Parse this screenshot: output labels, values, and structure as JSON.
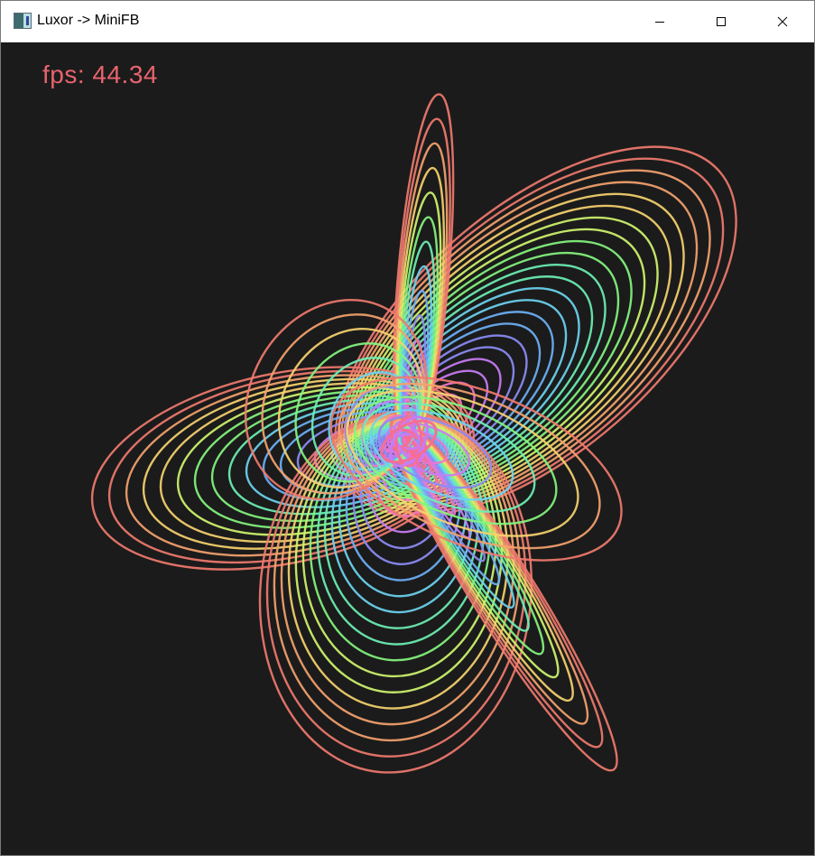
{
  "window": {
    "title": "Luxor -> MiniFB",
    "icon": "app-window-icon",
    "controls": [
      "minimize-icon",
      "maximize-icon",
      "close-icon"
    ]
  },
  "canvas": {
    "fps_text": "fps: 44.34",
    "fps_color": "#e8646e",
    "background": "#1b1b1b",
    "artwork": "nested rainbow elliptical loops"
  },
  "palette": [
    "#f07a6e",
    "#f4a26e",
    "#f6d26e",
    "#cff56e",
    "#84f57e",
    "#6cf0b4",
    "#6cd4f0",
    "#6cb0f6",
    "#8c8cf6",
    "#c87cf4",
    "#ee74cc",
    "#f56e96"
  ]
}
